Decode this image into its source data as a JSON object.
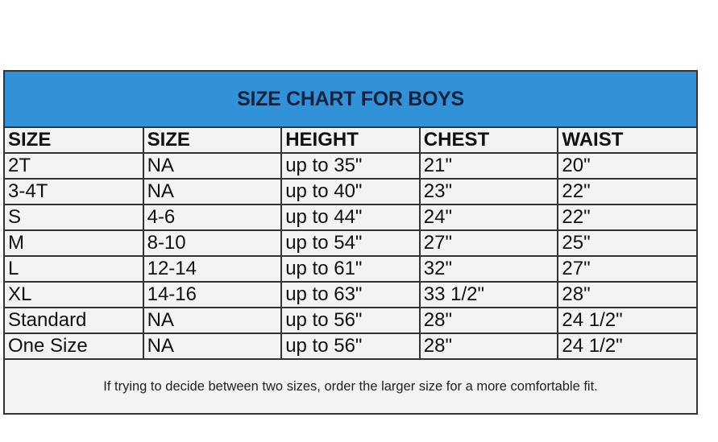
{
  "title": "SIZE CHART FOR BOYS",
  "columns": [
    "SIZE",
    "SIZE",
    "HEIGHT",
    "CHEST",
    "WAIST"
  ],
  "rows": [
    [
      "2T",
      "NA",
      "up to 35\"",
      "21\"",
      "20\""
    ],
    [
      "3-4T",
      "NA",
      "up to 40\"",
      "23\"",
      "22\""
    ],
    [
      "S",
      "4-6",
      "up to 44\"",
      "24\"",
      "22\""
    ],
    [
      "M",
      "8-10",
      "up to 54\"",
      "27\"",
      "25\""
    ],
    [
      "L",
      "12-14",
      "up to 61\"",
      "32\"",
      "27\""
    ],
    [
      "XL",
      "14-16",
      "up to 63\"",
      "33 1/2\"",
      "28\""
    ],
    [
      "Standard",
      "NA",
      "up to 56\"",
      "28\"",
      "24 1/2\""
    ],
    [
      "One Size",
      "NA",
      "up to 56\"",
      "28\"",
      "24 1/2\""
    ]
  ],
  "note": "If trying to decide between two sizes, order the larger size for a more comfortable fit.",
  "colors": {
    "header_bg": "#3192d8",
    "title_text": "#15233f",
    "table_bg": "#f3f3f3"
  }
}
